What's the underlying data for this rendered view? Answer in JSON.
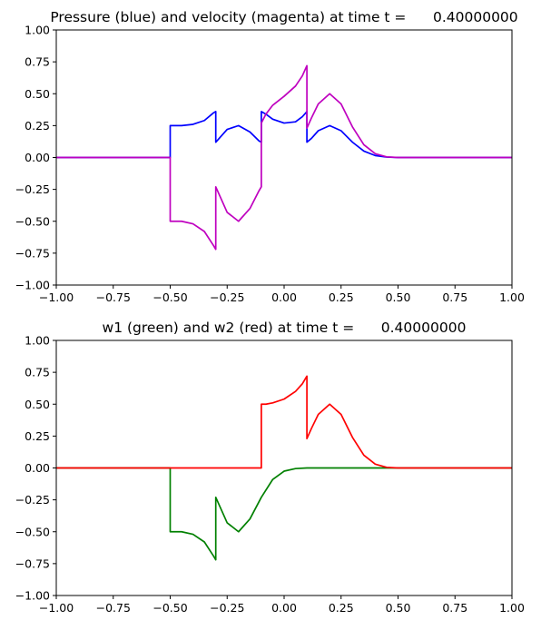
{
  "chart_data": [
    {
      "type": "line",
      "title": "Pressure (blue) and velocity (magenta) at time t =      0.40000000",
      "xlim": [
        -1.0,
        1.0
      ],
      "ylim": [
        -1.0,
        1.0
      ],
      "xticks": [
        "−1.00",
        "−0.75",
        "−0.50",
        "−0.25",
        "0.00",
        "0.25",
        "0.50",
        "0.75",
        "1.00"
      ],
      "yticks": [
        "−1.00",
        "−0.75",
        "−0.50",
        "−0.25",
        "0.00",
        "0.25",
        "0.50",
        "0.75",
        "1.00"
      ],
      "grid": false,
      "series": [
        {
          "color": "#0000ff",
          "x": [
            -1.0,
            -0.5,
            -0.5,
            -0.48,
            -0.45,
            -0.4,
            -0.35,
            -0.31,
            -0.3,
            -0.3,
            -0.27,
            -0.25,
            -0.2,
            -0.15,
            -0.11,
            -0.1,
            -0.1,
            -0.08,
            -0.05,
            0.0,
            0.05,
            0.08,
            0.1,
            0.1,
            0.12,
            0.15,
            0.2,
            0.25,
            0.3,
            0.35,
            0.4,
            0.45,
            0.5,
            0.6,
            1.0
          ],
          "y": [
            0.0,
            0.0,
            0.25,
            0.25,
            0.25,
            0.26,
            0.29,
            0.35,
            0.36,
            0.12,
            0.18,
            0.22,
            0.25,
            0.2,
            0.13,
            0.12,
            0.36,
            0.34,
            0.3,
            0.27,
            0.28,
            0.32,
            0.36,
            0.12,
            0.15,
            0.21,
            0.25,
            0.21,
            0.12,
            0.05,
            0.015,
            0.003,
            0.0,
            0.0,
            0.0
          ]
        },
        {
          "color": "#bf00bf",
          "x": [
            -1.0,
            -0.5,
            -0.5,
            -0.48,
            -0.45,
            -0.4,
            -0.35,
            -0.31,
            -0.3,
            -0.3,
            -0.27,
            -0.25,
            -0.2,
            -0.15,
            -0.11,
            -0.1,
            -0.1,
            -0.08,
            -0.05,
            0.0,
            0.05,
            0.08,
            0.1,
            0.1,
            0.12,
            0.15,
            0.2,
            0.25,
            0.3,
            0.35,
            0.4,
            0.45,
            0.5,
            0.6,
            1.0
          ],
          "y": [
            0.0,
            0.0,
            -0.5,
            -0.5,
            -0.5,
            -0.52,
            -0.58,
            -0.69,
            -0.72,
            -0.23,
            -0.35,
            -0.43,
            -0.5,
            -0.4,
            -0.26,
            -0.23,
            0.27,
            0.34,
            0.41,
            0.48,
            0.56,
            0.64,
            0.72,
            0.23,
            0.31,
            0.42,
            0.5,
            0.42,
            0.24,
            0.1,
            0.03,
            0.005,
            0.0,
            0.0,
            0.0
          ]
        }
      ]
    },
    {
      "type": "line",
      "title": "w1 (green) and w2 (red) at time t =      0.40000000",
      "xlim": [
        -1.0,
        1.0
      ],
      "ylim": [
        -1.0,
        1.0
      ],
      "xticks": [
        "−1.00",
        "−0.75",
        "−0.50",
        "−0.25",
        "0.00",
        "0.25",
        "0.50",
        "0.75",
        "1.00"
      ],
      "yticks": [
        "−1.00",
        "−0.75",
        "−0.50",
        "−0.25",
        "0.00",
        "0.25",
        "0.50",
        "0.75",
        "1.00"
      ],
      "grid": false,
      "series": [
        {
          "color": "#008000",
          "x": [
            -1.0,
            -0.5,
            -0.5,
            -0.48,
            -0.45,
            -0.4,
            -0.35,
            -0.31,
            -0.3,
            -0.3,
            -0.27,
            -0.25,
            -0.2,
            -0.15,
            -0.1,
            -0.05,
            0.0,
            0.05,
            0.1,
            0.15,
            0.2,
            0.3,
            1.0
          ],
          "y": [
            0.0,
            0.0,
            -0.5,
            -0.5,
            -0.5,
            -0.52,
            -0.58,
            -0.69,
            -0.72,
            -0.23,
            -0.35,
            -0.43,
            -0.5,
            -0.4,
            -0.23,
            -0.09,
            -0.025,
            -0.005,
            0.0,
            0.0,
            0.0,
            0.0,
            0.0
          ]
        },
        {
          "color": "#ff0000",
          "x": [
            -1.0,
            -0.1,
            -0.1,
            -0.08,
            -0.05,
            0.0,
            0.05,
            0.08,
            0.1,
            0.1,
            0.12,
            0.15,
            0.2,
            0.25,
            0.3,
            0.35,
            0.4,
            0.45,
            0.5,
            0.6,
            1.0
          ],
          "y": [
            0.0,
            0.0,
            0.5,
            0.5,
            0.51,
            0.54,
            0.6,
            0.66,
            0.72,
            0.23,
            0.31,
            0.42,
            0.5,
            0.42,
            0.24,
            0.1,
            0.03,
            0.005,
            0.0,
            0.0,
            0.0
          ]
        }
      ]
    }
  ]
}
